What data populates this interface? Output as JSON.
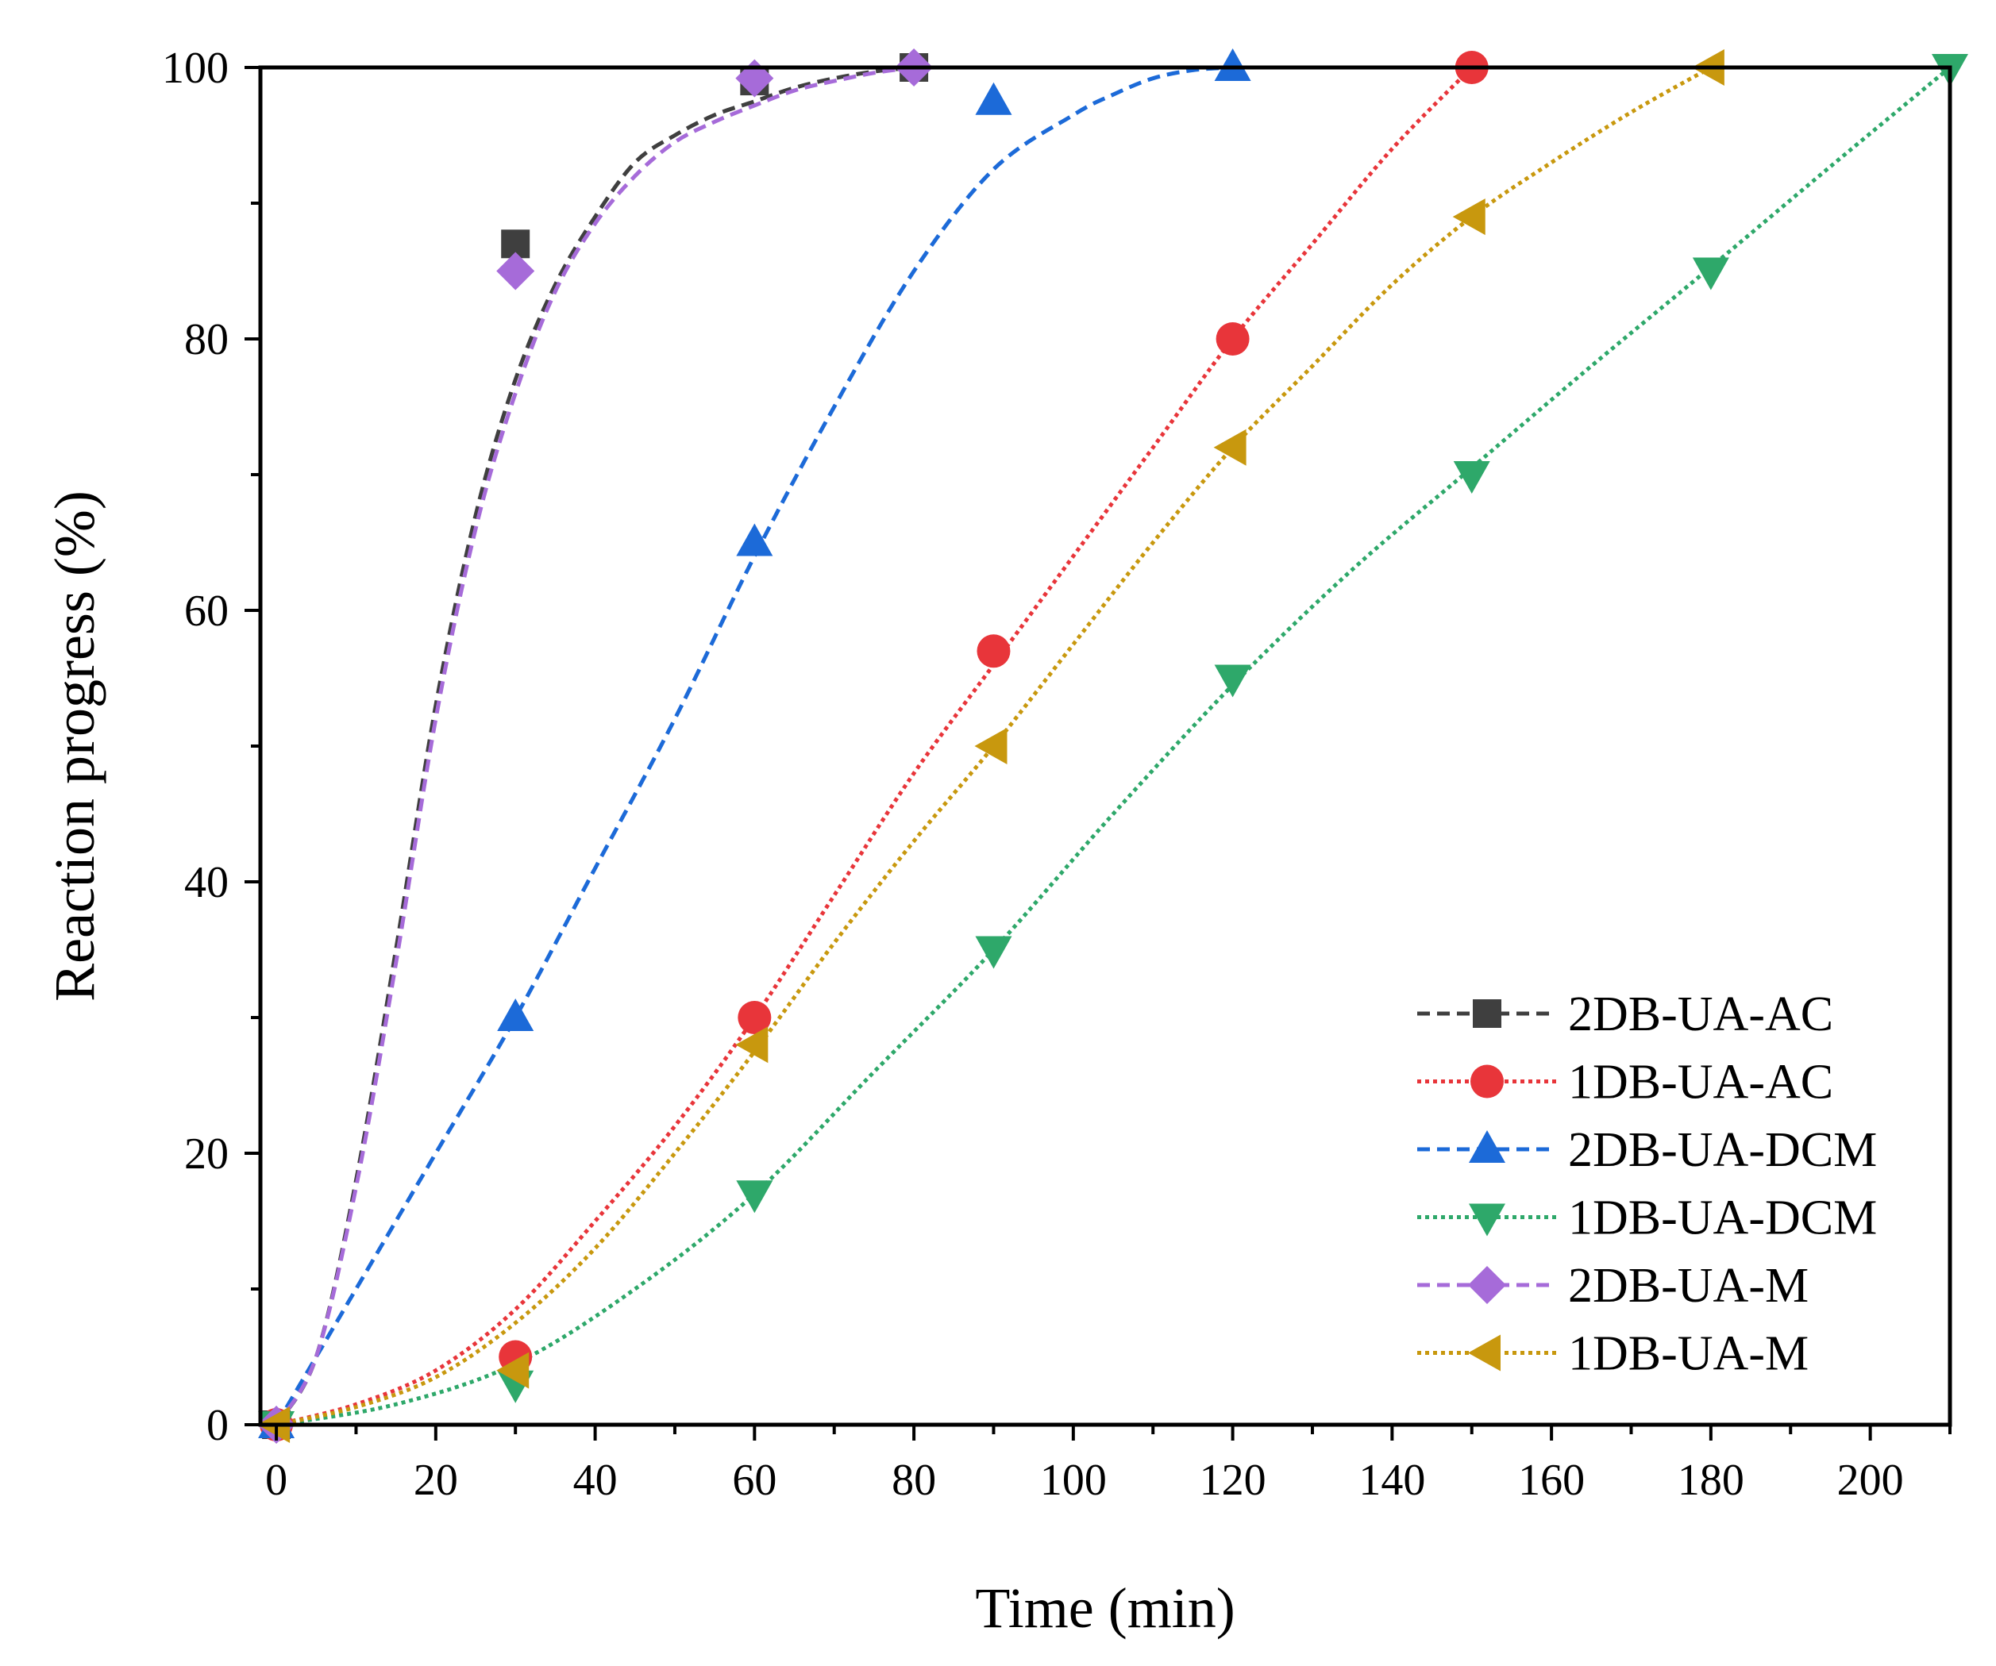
{
  "chart_data": {
    "type": "line",
    "title": "",
    "xlabel": "Time (min)",
    "ylabel": "Reaction progress (%)",
    "xlim": [
      -2,
      210
    ],
    "ylim": [
      0,
      100
    ],
    "x_ticks": [
      0,
      20,
      40,
      60,
      80,
      100,
      120,
      140,
      160,
      180,
      200
    ],
    "x_minor_step": 10,
    "y_ticks": [
      0,
      20,
      40,
      60,
      80,
      100
    ],
    "y_minor_step": 10,
    "x_tick_labels": [
      "0",
      "20",
      "40",
      "60",
      "80",
      "100",
      "120",
      "140",
      "160",
      "180",
      "200"
    ],
    "y_tick_labels": [
      "0",
      "20",
      "40",
      "60",
      "80",
      "100"
    ],
    "grid": false,
    "legend_position": "bottom-right",
    "series": [
      {
        "name": "2DB-UA-AC",
        "color": "#3f3f3f",
        "marker": "square",
        "line_style": "dashed",
        "x": [
          0,
          30,
          60,
          80
        ],
        "y": [
          0,
          87,
          99,
          100
        ],
        "fit_x": [
          0,
          5,
          10,
          15,
          20,
          25,
          30,
          35,
          40,
          45,
          50,
          55,
          60,
          65,
          70,
          75,
          80
        ],
        "fit_y": [
          0,
          5,
          18,
          35,
          53,
          67,
          77,
          84,
          89,
          93,
          95,
          96.5,
          97.5,
          98.5,
          99.2,
          99.7,
          100
        ]
      },
      {
        "name": "1DB-UA-AC",
        "color": "#e8353a",
        "marker": "circle",
        "line_style": "dotted",
        "x": [
          0,
          30,
          60,
          90,
          120,
          150
        ],
        "y": [
          0,
          5,
          30,
          57,
          80,
          100
        ],
        "fit_x": [
          0,
          10,
          20,
          30,
          40,
          50,
          60,
          70,
          80,
          90,
          100,
          110,
          120,
          130,
          140,
          150
        ],
        "fit_y": [
          0,
          1.5,
          4,
          8.5,
          15,
          22,
          30,
          39,
          48,
          56,
          64,
          72,
          80,
          87,
          94,
          100
        ]
      },
      {
        "name": "2DB-UA-DCM",
        "color": "#1c6ad8",
        "marker": "triangle-up",
        "line_style": "dashed",
        "x": [
          0,
          30,
          60,
          90,
          120
        ],
        "y": [
          0,
          30,
          65,
          97.5,
          100
        ],
        "fit_x": [
          0,
          10,
          20,
          30,
          40,
          50,
          60,
          70,
          80,
          90,
          100,
          105,
          110,
          115,
          120
        ],
        "fit_y": [
          0,
          10,
          20,
          30,
          41,
          52,
          64,
          75,
          85,
          92.5,
          96.5,
          98,
          99.2,
          99.8,
          100
        ]
      },
      {
        "name": "1DB-UA-DCM",
        "color": "#2ea86a",
        "marker": "triangle-down",
        "line_style": "dotted",
        "x": [
          0,
          30,
          60,
          90,
          120,
          150,
          180,
          210
        ],
        "y": [
          0,
          3,
          17,
          35,
          55,
          70,
          85,
          100
        ],
        "fit_x": [
          0,
          15,
          30,
          45,
          60,
          75,
          90,
          105,
          120,
          135,
          150,
          165,
          180,
          195,
          210
        ],
        "fit_y": [
          0,
          1.5,
          4.5,
          10,
          17,
          26,
          35,
          45,
          54.5,
          63,
          70.5,
          78,
          85.3,
          92.7,
          100
        ]
      },
      {
        "name": "2DB-UA-M",
        "color": "#a66bd9",
        "marker": "diamond",
        "line_style": "dashed",
        "x": [
          0,
          30,
          60,
          80
        ],
        "y": [
          0,
          85,
          99.2,
          100
        ],
        "fit_x": [
          0,
          5,
          10,
          15,
          20,
          25,
          30,
          35,
          40,
          45,
          50,
          55,
          60,
          65,
          70,
          75,
          80
        ],
        "fit_y": [
          0,
          5,
          17.5,
          34,
          52,
          66,
          76,
          83.5,
          88.5,
          92,
          94.5,
          96,
          97.2,
          98.3,
          99,
          99.6,
          100
        ]
      },
      {
        "name": "1DB-UA-M",
        "color": "#c8980e",
        "marker": "triangle-left",
        "line_style": "dotted",
        "x": [
          0,
          30,
          60,
          90,
          120,
          150,
          180
        ],
        "y": [
          0,
          4,
          28,
          50,
          72,
          89,
          100
        ],
        "fit_x": [
          0,
          10,
          20,
          30,
          40,
          50,
          60,
          70,
          80,
          90,
          100,
          110,
          120,
          130,
          140,
          150,
          160,
          170,
          180
        ],
        "fit_y": [
          0,
          1.3,
          3.5,
          7.5,
          13,
          20,
          27.5,
          35.5,
          43,
          50,
          57.5,
          65,
          72,
          78,
          84,
          89,
          93,
          96.7,
          100
        ]
      }
    ]
  }
}
